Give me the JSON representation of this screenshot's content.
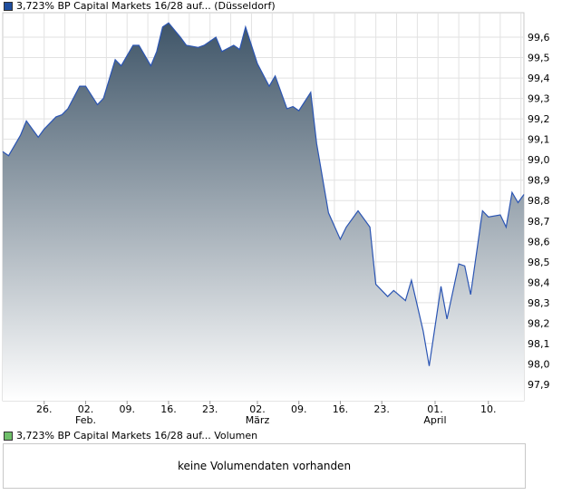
{
  "legend_price": {
    "label": "3,723% BP Capital Markets 16/28 auf... (Düsseldorf)",
    "color": "#1f4e9e"
  },
  "legend_volume": {
    "label": "3,723% BP Capital Markets 16/28 auf... Volumen",
    "color": "#6fbf6a"
  },
  "volume_message": "keine Volumendaten vorhanden",
  "chart_data": {
    "type": "area",
    "ylim": [
      97.82,
      99.72
    ],
    "yticks": [
      97.9,
      98.0,
      98.1,
      98.2,
      98.3,
      98.4,
      98.5,
      98.6,
      98.7,
      98.8,
      98.9,
      99.0,
      99.1,
      99.2,
      99.3,
      99.4,
      99.5,
      99.6
    ],
    "ytick_labels": [
      "97,9",
      "98,0",
      "98,1",
      "98,2",
      "98,3",
      "98,4",
      "98,5",
      "98,6",
      "98,7",
      "98,8",
      "98,9",
      "99,0",
      "99,1",
      "99,2",
      "99,3",
      "99,4",
      "99,5",
      "99,6"
    ],
    "xlim": [
      "2024-01-19",
      "2024-04-16"
    ],
    "xticks": [
      {
        "date": "2024-01-26",
        "label": "26.",
        "month": ""
      },
      {
        "date": "2024-02-02",
        "label": "02.",
        "month": "Feb."
      },
      {
        "date": "2024-02-09",
        "label": "09.",
        "month": ""
      },
      {
        "date": "2024-02-16",
        "label": "16.",
        "month": ""
      },
      {
        "date": "2024-02-23",
        "label": "23.",
        "month": ""
      },
      {
        "date": "2024-03-02",
        "label": "02.",
        "month": "März"
      },
      {
        "date": "2024-03-09",
        "label": "09.",
        "month": ""
      },
      {
        "date": "2024-03-16",
        "label": "16.",
        "month": ""
      },
      {
        "date": "2024-03-23",
        "label": "23.",
        "month": ""
      },
      {
        "date": "2024-04-01",
        "label": "01.",
        "month": "April"
      },
      {
        "date": "2024-04-10",
        "label": "10.",
        "month": ""
      }
    ],
    "series": [
      {
        "values": [
          [
            "2024-01-19",
            99.04
          ],
          [
            "2024-01-20",
            99.02
          ],
          [
            "2024-01-22",
            99.12
          ],
          [
            "2024-01-23",
            99.19
          ],
          [
            "2024-01-25",
            99.11
          ],
          [
            "2024-01-26",
            99.15
          ],
          [
            "2024-01-28",
            99.21
          ],
          [
            "2024-01-29",
            99.22
          ],
          [
            "2024-01-30",
            99.25
          ],
          [
            "2024-02-01",
            99.36
          ],
          [
            "2024-02-02",
            99.36
          ],
          [
            "2024-02-04",
            99.27
          ],
          [
            "2024-02-05",
            99.3
          ],
          [
            "2024-02-07",
            99.49
          ],
          [
            "2024-02-08",
            99.46
          ],
          [
            "2024-02-10",
            99.56
          ],
          [
            "2024-02-11",
            99.56
          ],
          [
            "2024-02-13",
            99.46
          ],
          [
            "2024-02-14",
            99.53
          ],
          [
            "2024-02-15",
            99.65
          ],
          [
            "2024-02-16",
            99.67
          ],
          [
            "2024-02-18",
            99.6
          ],
          [
            "2024-02-19",
            99.56
          ],
          [
            "2024-02-21",
            99.55
          ],
          [
            "2024-02-22",
            99.56
          ],
          [
            "2024-02-24",
            99.6
          ],
          [
            "2024-02-25",
            99.53
          ],
          [
            "2024-02-27",
            99.56
          ],
          [
            "2024-02-28",
            99.54
          ],
          [
            "2024-02-29",
            99.65
          ],
          [
            "2024-03-02",
            99.47
          ],
          [
            "2024-03-04",
            99.36
          ],
          [
            "2024-03-05",
            99.41
          ],
          [
            "2024-03-07",
            99.25
          ],
          [
            "2024-03-08",
            99.26
          ],
          [
            "2024-03-09",
            99.24
          ],
          [
            "2024-03-11",
            99.33
          ],
          [
            "2024-03-12",
            99.08
          ],
          [
            "2024-03-14",
            98.74
          ],
          [
            "2024-03-16",
            98.61
          ],
          [
            "2024-03-17",
            98.67
          ],
          [
            "2024-03-19",
            98.75
          ],
          [
            "2024-03-21",
            98.67
          ],
          [
            "2024-03-22",
            98.39
          ],
          [
            "2024-03-24",
            98.33
          ],
          [
            "2024-03-25",
            98.36
          ],
          [
            "2024-03-27",
            98.31
          ],
          [
            "2024-03-28",
            98.41
          ],
          [
            "2024-03-30",
            98.16
          ],
          [
            "2024-03-31",
            97.99
          ],
          [
            "2024-04-02",
            98.38
          ],
          [
            "2024-04-03",
            98.22
          ],
          [
            "2024-04-05",
            98.49
          ],
          [
            "2024-04-06",
            98.48
          ],
          [
            "2024-04-07",
            98.34
          ],
          [
            "2024-04-09",
            98.75
          ],
          [
            "2024-04-10",
            98.72
          ],
          [
            "2024-04-12",
            98.73
          ],
          [
            "2024-04-13",
            98.67
          ],
          [
            "2024-04-14",
            98.84
          ],
          [
            "2024-04-15",
            98.79
          ],
          [
            "2024-04-16",
            98.83
          ]
        ]
      }
    ],
    "grid": true,
    "gradient_top_color": "#3f5568",
    "gradient_bottom_color": "#ffffff",
    "line_color": "#2b55b3"
  }
}
